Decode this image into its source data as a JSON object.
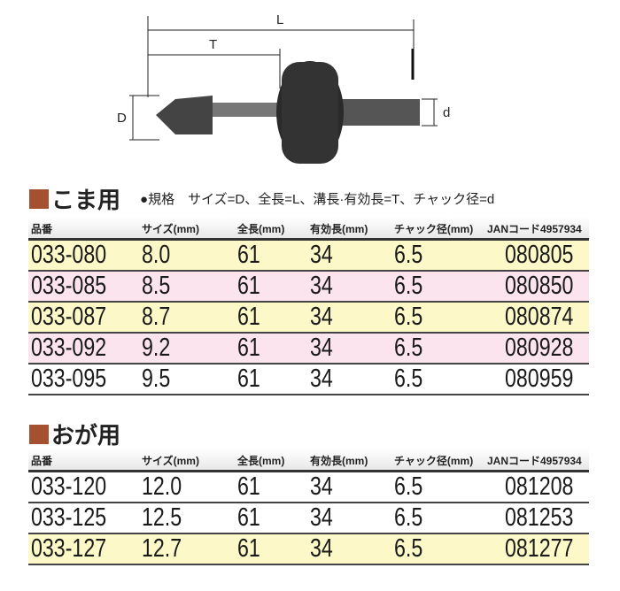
{
  "diagram": {
    "labels": {
      "L": "L",
      "T": "T",
      "D": "D",
      "d": "d"
    }
  },
  "section1": {
    "title": "こま用",
    "spec": "●規格　サイズ=D、全長=L、溝長·有効長=T、チャック径=d",
    "headers": [
      "品番",
      "サイズ(mm)",
      "全長(mm)",
      "有効長(mm)",
      "チャック径(mm)",
      "JANコード4957934"
    ],
    "rows": [
      [
        "033-080",
        "8.0",
        "61",
        "34",
        "6.5",
        "080805"
      ],
      [
        "033-085",
        "8.5",
        "61",
        "34",
        "6.5",
        "080850"
      ],
      [
        "033-087",
        "8.7",
        "61",
        "34",
        "6.5",
        "080874"
      ],
      [
        "033-092",
        "9.2",
        "61",
        "34",
        "6.5",
        "080928"
      ],
      [
        "033-095",
        "9.5",
        "61",
        "34",
        "6.5",
        "080959"
      ]
    ]
  },
  "section2": {
    "title": "おが用",
    "headers": [
      "品番",
      "サイズ(mm)",
      "全長(mm)",
      "有効長(mm)",
      "チャック径(mm)",
      "JANコード4957934"
    ],
    "rows": [
      [
        "033-120",
        "12.0",
        "61",
        "34",
        "6.5",
        "081208"
      ],
      [
        "033-125",
        "12.5",
        "61",
        "34",
        "6.5",
        "081253"
      ],
      [
        "033-127",
        "12.7",
        "61",
        "34",
        "6.5",
        "081277"
      ]
    ]
  },
  "colors": {
    "accent": "#a5512f",
    "row_yellow": "#fdf8c8",
    "row_pink": "#fbe4ee"
  }
}
